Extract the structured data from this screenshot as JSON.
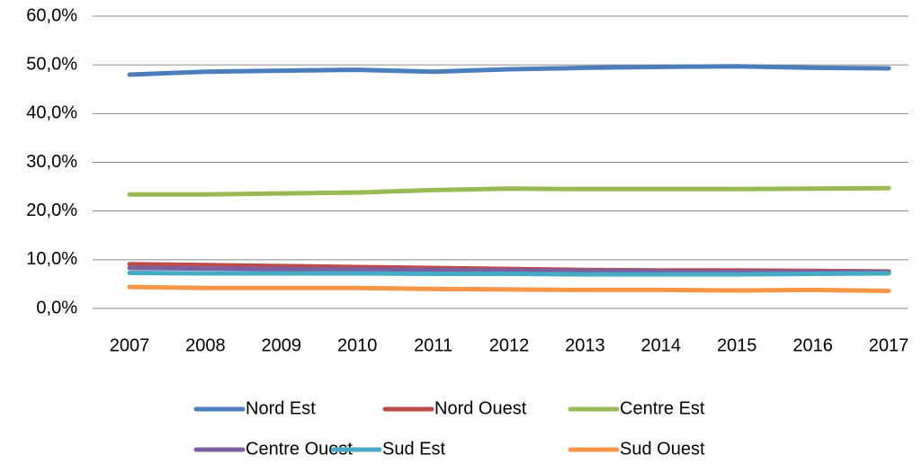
{
  "chart_data": {
    "type": "line",
    "categories": [
      "2007",
      "2008",
      "2009",
      "2010",
      "2011",
      "2012",
      "2013",
      "2014",
      "2015",
      "2016",
      "2017"
    ],
    "series": [
      {
        "name": "Nord Est",
        "color": "#4a7ebb",
        "values": [
          48.0,
          48.6,
          48.8,
          49.0,
          48.6,
          49.1,
          49.4,
          49.6,
          49.7,
          49.4,
          49.3
        ]
      },
      {
        "name": "Nord Ouest",
        "color": "#be4b48",
        "values": [
          9.1,
          8.9,
          8.7,
          8.5,
          8.3,
          8.1,
          7.9,
          7.8,
          7.8,
          7.7,
          7.6
        ]
      },
      {
        "name": "Centre Est",
        "color": "#98b954",
        "values": [
          23.4,
          23.4,
          23.6,
          23.8,
          24.3,
          24.6,
          24.5,
          24.5,
          24.5,
          24.6,
          24.7
        ]
      },
      {
        "name": "Centre Ouest",
        "color": "#7d5fa0",
        "values": [
          8.3,
          8.2,
          8.1,
          8.0,
          7.9,
          7.8,
          7.7,
          7.6,
          7.5,
          7.5,
          7.5
        ]
      },
      {
        "name": "Sud Est",
        "color": "#46aac5",
        "values": [
          7.3,
          7.2,
          7.2,
          7.2,
          7.1,
          7.1,
          7.0,
          7.0,
          7.0,
          7.1,
          7.2
        ]
      },
      {
        "name": "Sud Ouest",
        "color": "#f79646",
        "values": [
          4.4,
          4.2,
          4.2,
          4.2,
          4.0,
          3.9,
          3.8,
          3.8,
          3.7,
          3.8,
          3.6
        ]
      }
    ],
    "ylim": [
      0,
      60
    ],
    "yticks": [
      {
        "value": 0,
        "label": "0,0%"
      },
      {
        "value": 10,
        "label": "10,0%"
      },
      {
        "value": 20,
        "label": "20,0%"
      },
      {
        "value": 30,
        "label": "30,0%"
      },
      {
        "value": 40,
        "label": "40,0%"
      },
      {
        "value": 50,
        "label": "50,0%"
      },
      {
        "value": 60,
        "label": "60,0%"
      }
    ],
    "grid": true,
    "legend": "bottom"
  }
}
